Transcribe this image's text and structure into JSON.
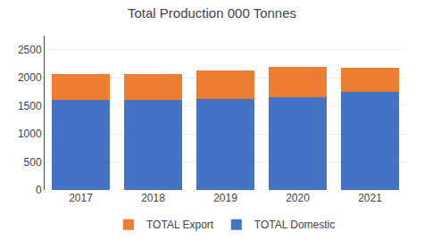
{
  "chart_data": {
    "type": "bar",
    "title": "Total Production 000 Tonnes",
    "categories": [
      "2017",
      "2018",
      "2019",
      "2020",
      "2021"
    ],
    "series": [
      {
        "name": "TOTAL Domestic",
        "color": "#4472C4",
        "values": [
          1600,
          1600,
          1615,
          1660,
          1745
        ]
      },
      {
        "name": "TOTAL Export",
        "color": "#ED7D31",
        "values": [
          470,
          470,
          510,
          535,
          425
        ]
      }
    ],
    "stacked": true,
    "ylim": [
      0,
      2750
    ],
    "yticks": [
      0,
      500,
      1000,
      1500,
      2000,
      2500
    ],
    "grid": true,
    "legend": "bottom"
  }
}
